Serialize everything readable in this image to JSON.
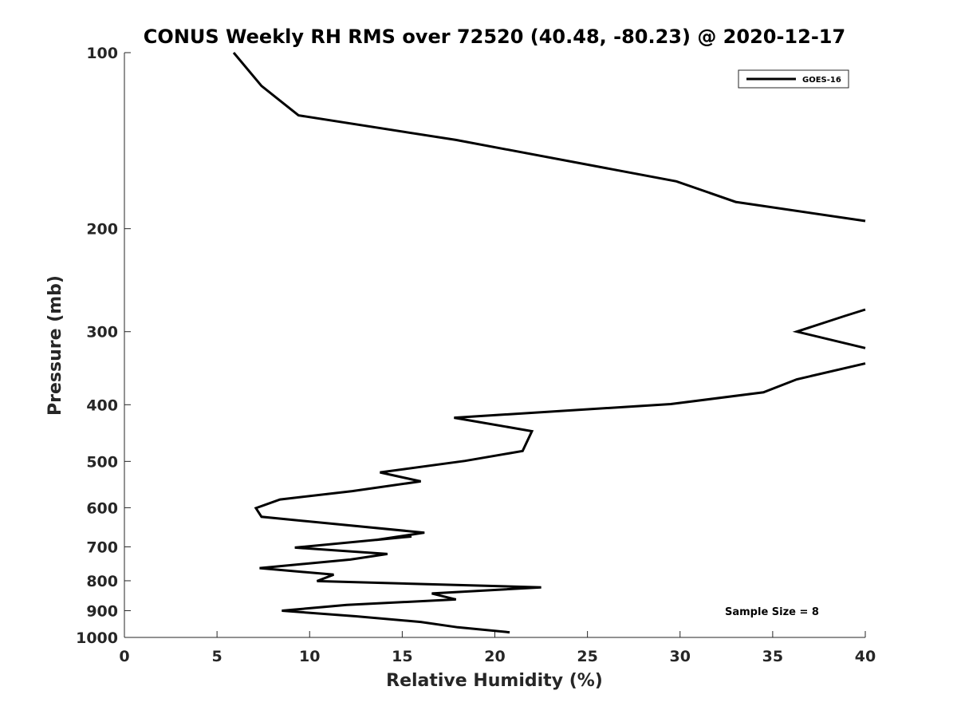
{
  "chart_data": {
    "type": "line",
    "title": "CONUS Weekly RH RMS over 72520 (40.48, -80.23) @ 2020-12-17",
    "xlabel": "Relative Humidity (%)",
    "ylabel": "Pressure (mb)",
    "xlim": [
      0,
      40
    ],
    "ylim": [
      100,
      1000
    ],
    "yscale": "log",
    "y_reversed": true,
    "grid": false,
    "legend_position": "top-right",
    "x_ticks": [
      0,
      5,
      10,
      15,
      20,
      25,
      30,
      35,
      40
    ],
    "x_tick_labels": [
      "0",
      "5",
      "10",
      "15",
      "20",
      "25",
      "30",
      "35",
      "40"
    ],
    "y_ticks": [
      100,
      200,
      300,
      400,
      500,
      600,
      700,
      800,
      900,
      1000
    ],
    "y_tick_labels": [
      "100",
      "200",
      "300",
      "400",
      "500",
      "600",
      "700",
      "800",
      "900",
      "1000"
    ],
    "annotation": "Sample Size = 8",
    "series": [
      {
        "name": "GOES-16",
        "color": "#000000",
        "segments": [
          {
            "x": [
              5.9,
              7.4,
              9.4,
              17.9,
              29.8,
              33.0,
              40.0
            ],
            "y": [
              100,
              114,
              128,
              141,
              166,
              180,
              194
            ]
          },
          {
            "x": [
              40.0,
              38.9,
              36.3,
              40.0
            ],
            "y": [
              275,
              282,
              300,
              320
            ]
          },
          {
            "x": [
              40.0,
              36.3,
              34.5,
              29.5,
              17.8,
              22.0,
              21.5,
              18.4,
              13.8,
              16.0,
              12.3,
              8.4,
              7.1,
              7.4,
              16.2,
              13.6,
              15.5,
              9.2,
              14.2,
              12.2,
              7.3,
              11.3,
              10.4,
              22.5,
              16.6,
              17.9,
              12.0,
              8.5,
              12.5,
              16.0,
              18.0,
              20.8
            ],
            "y": [
              340,
              362,
              381,
              399,
              421,
              444,
              480,
              499,
              522,
              541,
              562,
              581,
              601,
              622,
              662,
              681,
              672,
              702,
              720,
              736,
              761,
              781,
              801,
              821,
              841,
              861,
              880,
              900,
              920,
              941,
              961,
              980
            ]
          }
        ]
      }
    ]
  }
}
